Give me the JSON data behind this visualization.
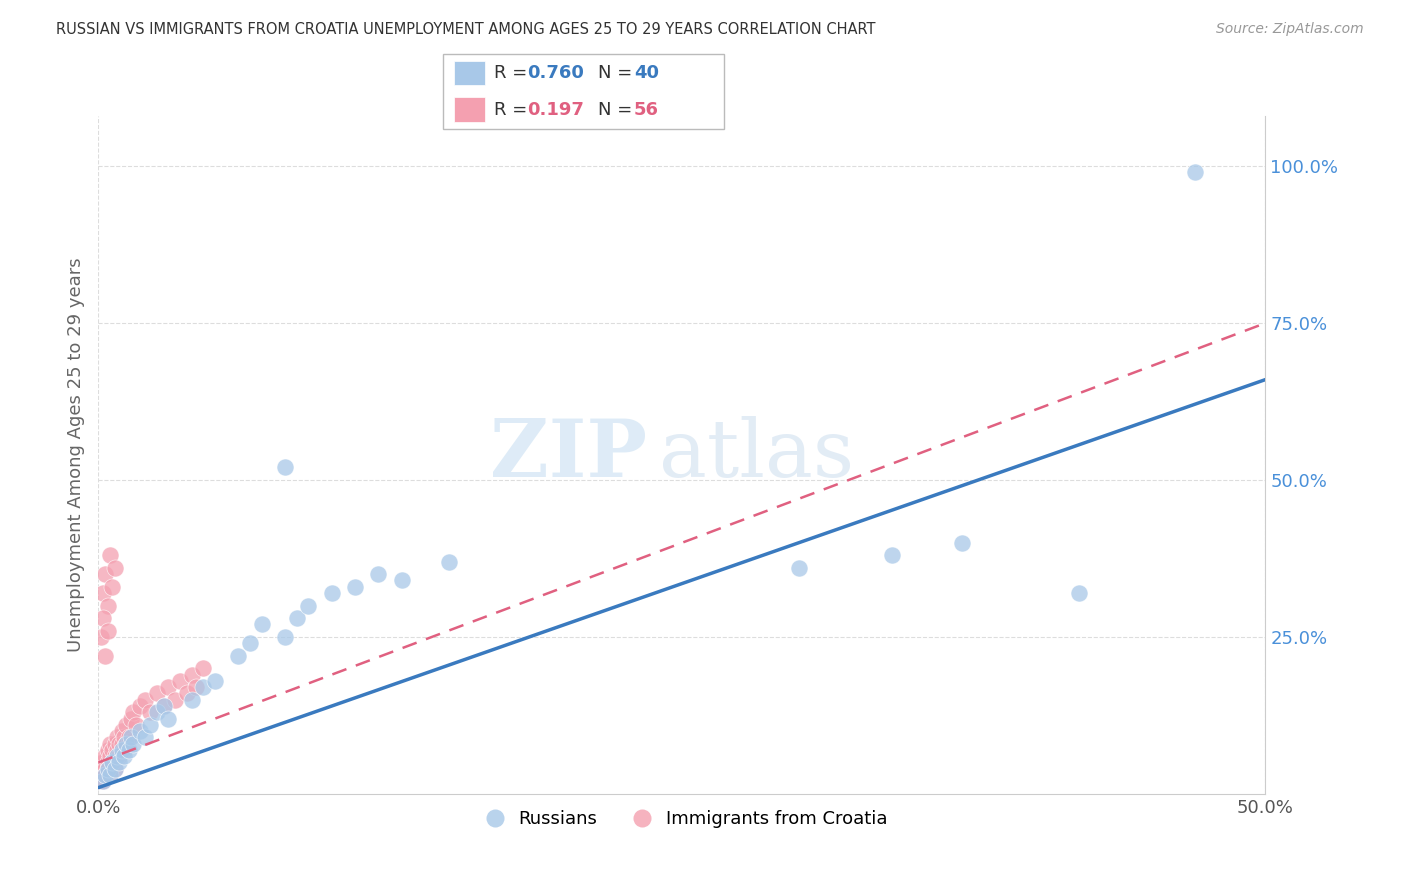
{
  "title": "RUSSIAN VS IMMIGRANTS FROM CROATIA UNEMPLOYMENT AMONG AGES 25 TO 29 YEARS CORRELATION CHART",
  "source": "Source: ZipAtlas.com",
  "ylabel_label": "Unemployment Among Ages 25 to 29 years",
  "series": [
    {
      "label": "Russians",
      "R": 0.76,
      "N": 40,
      "color": "#a8c8e8",
      "line_color": "#3a7abf",
      "scatter_alpha": 0.75
    },
    {
      "label": "Immigrants from Croatia",
      "R": 0.197,
      "N": 56,
      "color": "#f4a0b0",
      "line_color": "#e06080",
      "scatter_alpha": 0.75
    }
  ],
  "watermark_zip": "ZIP",
  "watermark_atlas": "atlas",
  "xlim": [
    0.0,
    0.5
  ],
  "ylim": [
    0.0,
    1.08
  ],
  "background_color": "#ffffff",
  "grid_color": "#dddddd",
  "ytick_color": "#4a90d9",
  "xtick_color": "#555555"
}
